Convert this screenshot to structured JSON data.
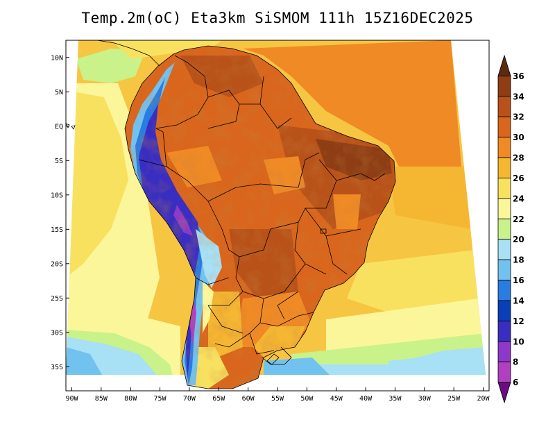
{
  "title": "Temp.2m(oC) Eta3km SiSMOM 111h 15Z16DEC2025",
  "map": {
    "lat_ticks": [
      "10N",
      "5N",
      "EQ",
      "5S",
      "10S",
      "15S",
      "20S",
      "25S",
      "30S",
      "35S"
    ],
    "lat_values": [
      10,
      5,
      0,
      -5,
      -10,
      -15,
      -20,
      -25,
      -30,
      -35
    ],
    "lon_ticks": [
      "90W",
      "85W",
      "80W",
      "75W",
      "70W",
      "65W",
      "60W",
      "55W",
      "50W",
      "45W",
      "40W",
      "35W",
      "30W",
      "25W",
      "20W"
    ],
    "lon_values": [
      -90,
      -85,
      -80,
      -75,
      -70,
      -65,
      -60,
      -55,
      -50,
      -45,
      -40,
      -35,
      -30,
      -25,
      -20
    ],
    "lat_range": [
      -38.5,
      12.5
    ],
    "lon_range": [
      -91,
      -19
    ]
  },
  "colorbar": {
    "labels": [
      "36",
      "34",
      "32",
      "30",
      "28",
      "26",
      "24",
      "22",
      "20",
      "18",
      "16",
      "14",
      "12",
      "10",
      "8",
      "6"
    ],
    "values": [
      36,
      34,
      32,
      30,
      28,
      26,
      24,
      22,
      20,
      18,
      16,
      14,
      12,
      10,
      8,
      6
    ],
    "colors": [
      "#5c2a0f",
      "#8e3d14",
      "#b85219",
      "#d9661c",
      "#f08a25",
      "#f5b632",
      "#f9e160",
      "#fcf69b",
      "#c9f28a",
      "#a8e0f5",
      "#72c2f0",
      "#2a7de0",
      "#0a3fb8",
      "#3a2ec0",
      "#8d38c8",
      "#b040c0",
      "#6a0d80"
    ]
  }
}
